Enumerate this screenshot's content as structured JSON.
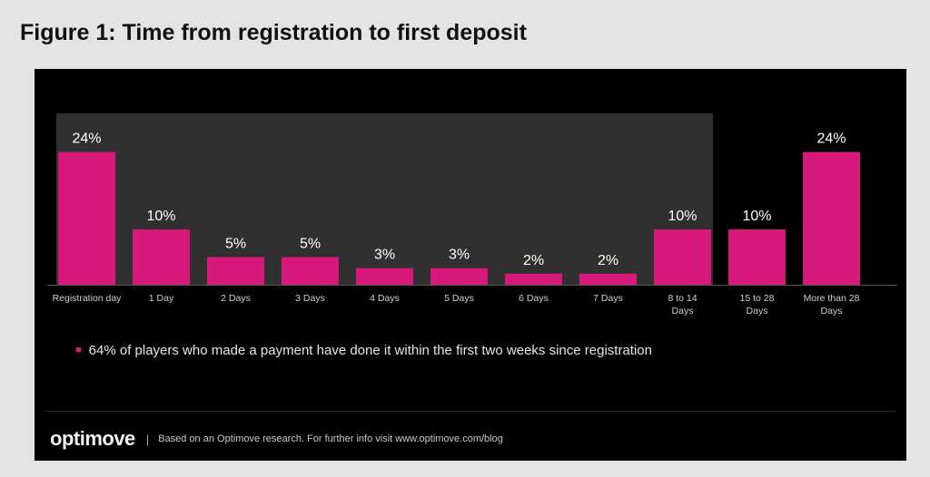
{
  "figure_title": "Figure 1: Time from registration to first deposit",
  "chart_data": {
    "type": "bar",
    "categories": [
      "Registration day",
      "1 Day",
      "2 Days",
      "3 Days",
      "4 Days",
      "5 Days",
      "6 Days",
      "7 Days",
      "8 to 14 Days",
      "15 to 28 Days",
      "More than 28 Days"
    ],
    "values": [
      24,
      10,
      5,
      5,
      3,
      3,
      2,
      2,
      10,
      10,
      24
    ],
    "value_labels": [
      "24%",
      "10%",
      "5%",
      "5%",
      "3%",
      "3%",
      "2%",
      "2%",
      "10%",
      "10%",
      "24%"
    ],
    "highlighted_range": [
      "Registration day",
      "8 to 14 Days"
    ],
    "bar_color": "#d6197a",
    "highlight_color": "#303030",
    "background_color": "#000000",
    "grid": false
  },
  "note": {
    "text": "64% of players who made a payment have done it within the first two weeks since registration"
  },
  "footer": {
    "logo": "optimove",
    "separator": "|",
    "source": "Based on an Optimove research. For further info visit www.optimove.com/blog"
  }
}
